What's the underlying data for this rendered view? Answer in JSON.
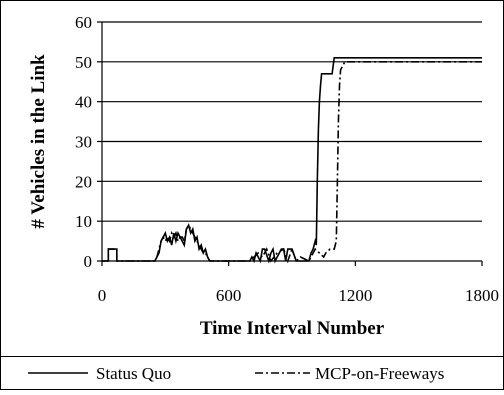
{
  "chart_data": {
    "type": "line",
    "title": "",
    "xlabel": "Time Interval Number",
    "ylabel": "# Vehicles in the Link",
    "xlim": [
      0,
      1800
    ],
    "ylim": [
      0,
      60
    ],
    "xticks": [
      "0",
      "600",
      "1200",
      "1800"
    ],
    "yticks": [
      "0",
      "10",
      "20",
      "30",
      "40",
      "50",
      "60"
    ],
    "grid": "horizontal",
    "legend_position": "bottom",
    "series": [
      {
        "name": "Status Quo",
        "style": "solid",
        "color": "#000000",
        "x": [
          0,
          30,
          30,
          70,
          70,
          250,
          260,
          270,
          280,
          290,
          300,
          310,
          320,
          330,
          340,
          350,
          360,
          370,
          380,
          390,
          400,
          410,
          420,
          430,
          440,
          450,
          460,
          470,
          480,
          490,
          500,
          510,
          520,
          700,
          710,
          720,
          730,
          740,
          750,
          760,
          770,
          790,
          800,
          810,
          820,
          830,
          840,
          850,
          860,
          870,
          880,
          900,
          920,
          980,
          990,
          1000,
          1010,
          1015,
          1020,
          1025,
          1030,
          1035,
          1040,
          1050,
          1060,
          1080,
          1090,
          1100,
          1110,
          1800
        ],
        "y": [
          0,
          0,
          3,
          3,
          0,
          0,
          1,
          2,
          5,
          6,
          7,
          5,
          6,
          4,
          7,
          5,
          7,
          6,
          5,
          4,
          8,
          9,
          7,
          8,
          5,
          6,
          3,
          4,
          2,
          3,
          1,
          0,
          0,
          0,
          1,
          0,
          2,
          1,
          0,
          3,
          3,
          0,
          2,
          3,
          0,
          1,
          2,
          3,
          3,
          0,
          3,
          3,
          0,
          0,
          2,
          3,
          5,
          4,
          20,
          33,
          40,
          44,
          47,
          47,
          47,
          47,
          47,
          51,
          51,
          51
        ]
      },
      {
        "name": "MCP-on-Freeways",
        "style": "dash-dot",
        "color": "#000000",
        "x": [
          0,
          30,
          30,
          70,
          70,
          250,
          260,
          270,
          280,
          290,
          300,
          310,
          320,
          330,
          340,
          350,
          360,
          370,
          380,
          390,
          400,
          410,
          420,
          430,
          440,
          450,
          460,
          470,
          480,
          490,
          500,
          510,
          520,
          700,
          720,
          740,
          760,
          780,
          800,
          830,
          860,
          880,
          900,
          920,
          940,
          980,
          1000,
          1010,
          1030,
          1050,
          1060,
          1080,
          1100,
          1110,
          1115,
          1120,
          1125,
          1130,
          1140,
          1150,
          1160,
          1800
        ],
        "y": [
          0,
          0,
          3,
          3,
          0,
          0,
          1,
          3,
          5,
          6,
          5,
          6,
          5,
          7,
          6,
          7,
          5,
          6,
          6,
          5,
          8,
          9,
          8,
          7,
          6,
          5,
          4,
          3,
          2,
          2,
          1,
          0,
          0,
          0,
          1,
          2,
          1,
          3,
          0,
          2,
          3,
          0,
          3,
          0,
          1,
          0,
          2,
          3,
          2,
          1,
          2,
          3,
          3,
          5,
          20,
          35,
          44,
          48,
          49,
          50,
          50,
          50
        ]
      }
    ]
  }
}
